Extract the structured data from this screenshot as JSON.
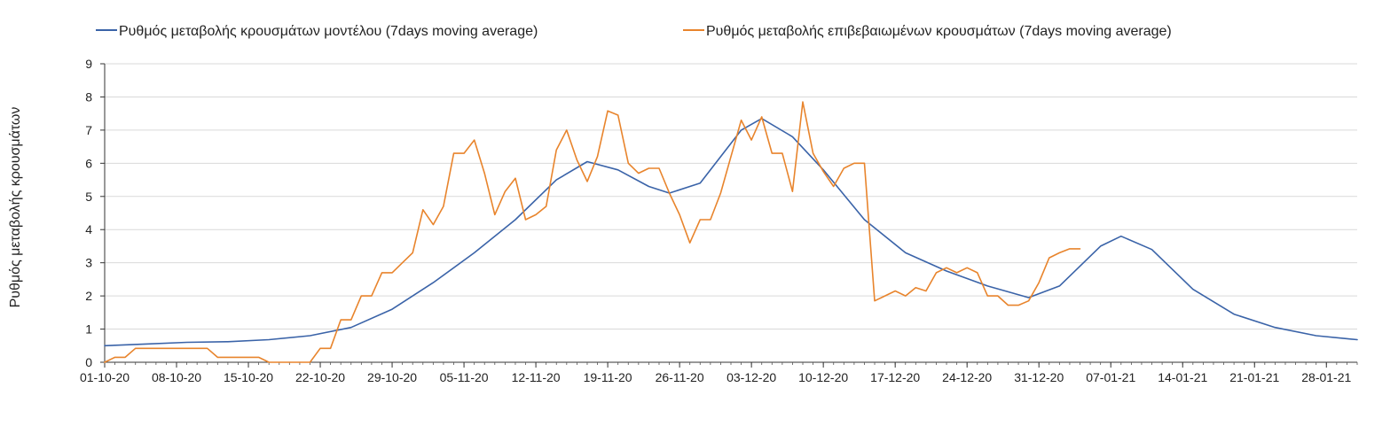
{
  "chart_data": {
    "type": "line",
    "ylabel": "Ρυθμός μεταβολής κρουσμάτων",
    "xlabel": "",
    "ylim": [
      0,
      9
    ],
    "yticks": [
      0,
      1,
      2,
      3,
      4,
      5,
      6,
      7,
      8,
      9
    ],
    "x_start": "01-10-20",
    "x_end": "31-01-21",
    "x_tick_labels": [
      "01-10-20",
      "08-10-20",
      "15-10-20",
      "22-10-20",
      "29-10-20",
      "05-11-20",
      "12-11-20",
      "19-11-20",
      "26-11-20",
      "03-12-20",
      "10-12-20",
      "17-12-20",
      "24-12-20",
      "31-12-20",
      "07-01-21",
      "14-01-21",
      "21-01-21",
      "28-01-21"
    ],
    "grid": "horizontal",
    "legend_position": "top",
    "series": [
      {
        "name": "Ρυθμός μεταβολής κρουσμάτων μοντέλου (7days moving average)",
        "color": "#3a63a8",
        "x": [
          "01-10-20",
          "05-10-20",
          "09-10-20",
          "13-10-20",
          "17-10-20",
          "21-10-20",
          "25-10-20",
          "29-10-20",
          "02-11-20",
          "06-11-20",
          "10-11-20",
          "14-11-20",
          "17-11-20",
          "20-11-20",
          "23-11-20",
          "25-11-20",
          "28-11-20",
          "02-12-20",
          "04-12-20",
          "07-12-20",
          "10-12-20",
          "14-12-20",
          "18-12-20",
          "22-12-20",
          "26-12-20",
          "30-12-20",
          "02-01-21",
          "06-01-21",
          "08-01-21",
          "11-01-21",
          "15-01-21",
          "19-01-21",
          "23-01-21",
          "27-01-21",
          "31-01-21"
        ],
        "values": [
          0.5,
          0.55,
          0.6,
          0.62,
          0.68,
          0.8,
          1.05,
          1.6,
          2.4,
          3.3,
          4.3,
          5.5,
          6.05,
          5.8,
          5.3,
          5.1,
          5.4,
          7.0,
          7.35,
          6.8,
          5.8,
          4.3,
          3.3,
          2.75,
          2.3,
          1.95,
          2.3,
          3.5,
          3.8,
          3.4,
          2.2,
          1.45,
          1.05,
          0.8,
          0.68
        ]
      },
      {
        "name": "Ρυθμός μεταβολής επιβεβαιωμένων κρουσμάτων (7days moving average)",
        "color": "#e8842c",
        "x": [
          "01-10-20",
          "02-10-20",
          "03-10-20",
          "04-10-20",
          "11-10-20",
          "12-10-20",
          "16-10-20",
          "17-10-20",
          "21-10-20",
          "22-10-20",
          "23-10-20",
          "24-10-20",
          "25-10-20",
          "26-10-20",
          "27-10-20",
          "28-10-20",
          "29-10-20",
          "30-10-20",
          "31-10-20",
          "01-11-20",
          "02-11-20",
          "03-11-20",
          "04-11-20",
          "05-11-20",
          "06-11-20",
          "07-11-20",
          "08-11-20",
          "09-11-20",
          "10-11-20",
          "11-11-20",
          "12-11-20",
          "13-11-20",
          "14-11-20",
          "15-11-20",
          "16-11-20",
          "17-11-20",
          "18-11-20",
          "19-11-20",
          "20-11-20",
          "21-11-20",
          "22-11-20",
          "23-11-20",
          "24-11-20",
          "25-11-20",
          "26-11-20",
          "27-11-20",
          "28-11-20",
          "29-11-20",
          "30-11-20",
          "01-12-20",
          "02-12-20",
          "03-12-20",
          "04-12-20",
          "05-12-20",
          "06-12-20",
          "07-12-20",
          "08-12-20",
          "09-12-20",
          "10-12-20",
          "11-12-20",
          "12-12-20",
          "13-12-20",
          "14-12-20",
          "15-12-20",
          "16-12-20",
          "17-12-20",
          "18-12-20",
          "19-12-20",
          "20-12-20",
          "21-12-20",
          "22-12-20",
          "23-12-20",
          "24-12-20",
          "25-12-20",
          "26-12-20",
          "27-12-20",
          "28-12-20",
          "29-12-20",
          "30-12-20",
          "31-12-20",
          "01-01-21",
          "02-01-21",
          "03-01-21",
          "04-01-21"
        ],
        "values": [
          0.0,
          0.15,
          0.15,
          0.42,
          0.42,
          0.15,
          0.15,
          0.0,
          0.0,
          0.42,
          0.42,
          1.28,
          1.28,
          2.0,
          2.0,
          2.7,
          2.7,
          3.0,
          3.3,
          4.6,
          4.15,
          4.7,
          6.3,
          6.3,
          6.7,
          5.7,
          4.45,
          5.15,
          5.55,
          4.3,
          4.45,
          4.7,
          6.4,
          7.0,
          6.1,
          5.45,
          6.2,
          7.58,
          7.45,
          6.0,
          5.7,
          5.85,
          5.85,
          5.1,
          4.45,
          3.6,
          4.3,
          4.3,
          5.1,
          6.2,
          7.3,
          6.7,
          7.4,
          6.3,
          6.3,
          5.15,
          7.85,
          6.3,
          5.75,
          5.3,
          5.85,
          6.0,
          6.0,
          1.85,
          2.0,
          2.15,
          2.0,
          2.25,
          2.15,
          2.7,
          2.85,
          2.7,
          2.85,
          2.7,
          2.0,
          2.0,
          1.72,
          1.72,
          1.85,
          2.4,
          3.15,
          3.3,
          3.42,
          3.42
        ]
      }
    ]
  }
}
